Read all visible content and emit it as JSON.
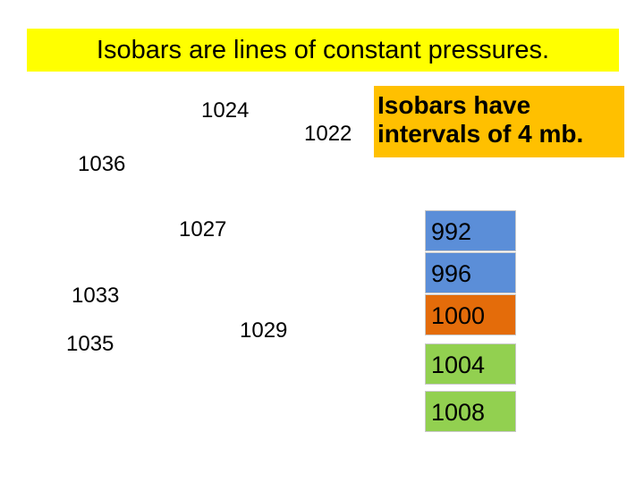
{
  "title": "Isobars are lines of  constant  pressures.",
  "pressures": [
    "1024",
    "1022",
    "1036",
    "1027",
    "1033",
    "1035",
    "1029"
  ],
  "note": {
    "line1": "Isobars have",
    "line2": "intervals of 4 mb."
  },
  "scale": [
    "992",
    "996",
    "1000",
    "1004",
    "1008"
  ]
}
